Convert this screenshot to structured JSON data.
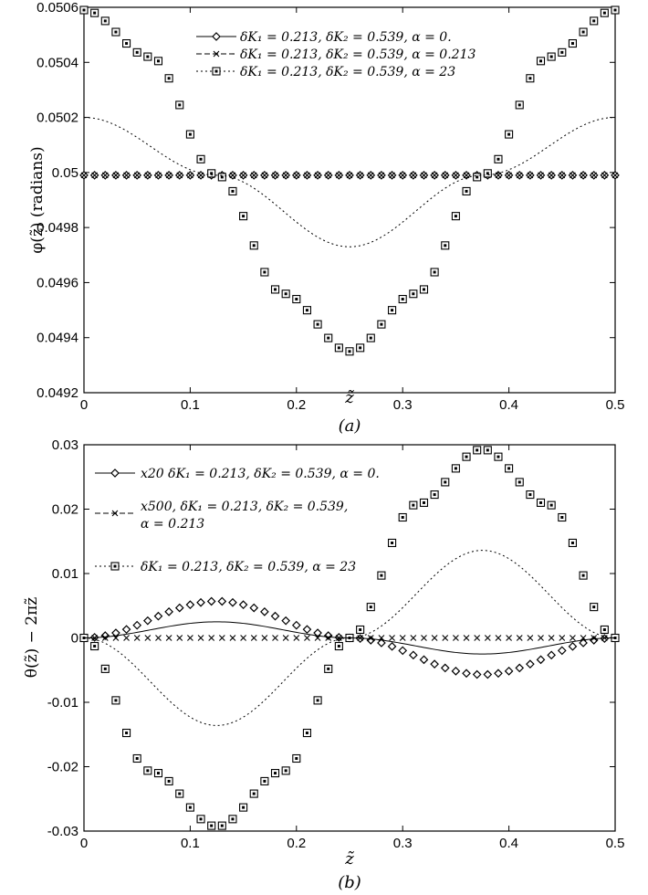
{
  "chart_data": [
    {
      "type": "line",
      "caption": "(a)",
      "xlabel": "z̃",
      "ylabel": "φ(z̃) (radians)",
      "xlim": [
        0,
        0.5
      ],
      "ylim": [
        0.0492,
        0.0506
      ],
      "xticks": [
        "0",
        "0.1",
        "0.2",
        "0.3",
        "0.4",
        "0.5"
      ],
      "yticks": [
        "0.0492",
        "0.0494",
        "0.0496",
        "0.0498",
        "0.05",
        "0.0502",
        "0.0504",
        "0.0506"
      ],
      "grid": false,
      "legend_position": "top-center",
      "series": [
        {
          "name": "δK₁ = 0.213, δK₂ = 0.539, α = 0.",
          "line": "solid",
          "marker": "diamond",
          "x": [
            0,
            0.1,
            0.2,
            0.25,
            0.3,
            0.4,
            0.5
          ],
          "y": [
            0.04999,
            0.04999,
            0.04999,
            0.04999,
            0.04999,
            0.04999,
            0.04999
          ]
        },
        {
          "name": "δK₁ = 0.213, δK₂ = 0.539, α = 0.213",
          "line": "dashed",
          "marker": "x",
          "x": [
            0,
            0.1,
            0.2,
            0.25,
            0.3,
            0.4,
            0.5
          ],
          "y": [
            0.04999,
            0.04999,
            0.04999,
            0.04999,
            0.04999,
            0.04999,
            0.04999
          ]
        },
        {
          "name": "δK₁ = 0.213, δK₂ = 0.539, α = 23",
          "line": "dotted",
          "marker": "square",
          "x": [
            0,
            0.0625,
            0.125,
            0.1875,
            0.25,
            0.3125,
            0.375,
            0.4375,
            0.5
          ],
          "y": [
            0.05059,
            0.05042,
            0.04999,
            0.04956,
            0.04935,
            0.04956,
            0.04999,
            0.05042,
            0.05059
          ]
        },
        {
          "name": "",
          "line": "dotted",
          "marker": "none",
          "x": [
            0,
            0.125,
            0.25,
            0.375,
            0.5
          ],
          "y": [
            0.0502,
            0.04999,
            0.04973,
            0.04999,
            0.0502
          ]
        }
      ]
    },
    {
      "type": "line",
      "caption": "(b)",
      "xlabel": "z̃",
      "ylabel": "θ(z̃) − 2πz̃",
      "xlim": [
        0,
        0.5
      ],
      "ylim": [
        -0.03,
        0.03
      ],
      "xticks": [
        "0",
        "0.1",
        "0.2",
        "0.3",
        "0.4",
        "0.5"
      ],
      "yticks": [
        "-0.03",
        "-0.02",
        "-0.01",
        "0",
        "0.01",
        "0.02",
        "0.03"
      ],
      "grid": false,
      "legend_position": "top-left",
      "series": [
        {
          "name": "x20 δK₁ = 0.213, δK₂ = 0.539, α = 0.",
          "line": "solid",
          "marker": "diamond",
          "x": [
            0,
            0.125,
            0.25,
            0.375,
            0.5
          ],
          "y": [
            0,
            0.0057,
            0,
            -0.0057,
            0
          ]
        },
        {
          "name": "x500, δK₁ = 0.213, δK₂ = 0.539, α = 0.213",
          "line": "dashed",
          "marker": "x",
          "x": [
            0,
            0.1,
            0.2,
            0.3,
            0.4,
            0.5
          ],
          "y": [
            0,
            0,
            0,
            0,
            0,
            0
          ]
        },
        {
          "name": "δK₁ = 0.213, δK₂ = 0.539, α = 23",
          "line": "dotted",
          "marker": "square",
          "x": [
            0,
            0.0625,
            0.125,
            0.1875,
            0.25,
            0.3125,
            0.375,
            0.4375,
            0.5
          ],
          "y": [
            0,
            -0.0207,
            -0.0293,
            -0.0207,
            0,
            0.0207,
            0.0293,
            0.0207,
            0
          ]
        },
        {
          "name": "",
          "line": "solid",
          "marker": "none",
          "x": [
            0,
            0.125,
            0.25,
            0.375,
            0.5
          ],
          "y": [
            0,
            0.0025,
            0,
            -0.0025,
            0
          ]
        },
        {
          "name": "",
          "line": "dotted",
          "marker": "none",
          "x": [
            0,
            0.125,
            0.25,
            0.375,
            0.5
          ],
          "y": [
            0,
            -0.0136,
            0,
            0.0136,
            0
          ]
        }
      ]
    }
  ]
}
